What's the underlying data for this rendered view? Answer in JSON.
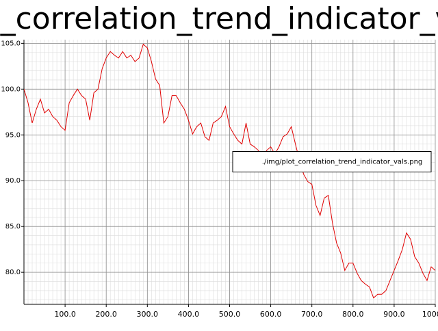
{
  "chart_data": {
    "type": "line",
    "title": "plot_correlation_trend_indicator_vals",
    "x": [
      0,
      10,
      20,
      30,
      40,
      50,
      60,
      70,
      80,
      90,
      100,
      110,
      120,
      130,
      140,
      150,
      160,
      170,
      180,
      190,
      200,
      210,
      220,
      230,
      240,
      250,
      260,
      270,
      280,
      290,
      300,
      310,
      320,
      330,
      340,
      350,
      360,
      370,
      380,
      390,
      400,
      410,
      420,
      430,
      440,
      450,
      460,
      470,
      480,
      490,
      500,
      510,
      520,
      530,
      540,
      550,
      560,
      570,
      580,
      590,
      600,
      610,
      620,
      630,
      640,
      650,
      660,
      670,
      680,
      690,
      700,
      710,
      720,
      730,
      740,
      750,
      760,
      770,
      780,
      790,
      800,
      810,
      820,
      830,
      840,
      850,
      860,
      870,
      880,
      890,
      900,
      910,
      920,
      930,
      940,
      950,
      960,
      970,
      980,
      990,
      1000
    ],
    "series": [
      {
        "name": "./img/plot_correlation_trend_indicator_vals.png",
        "color": "#e00000",
        "values": [
          100.0,
          98.5,
          96.3,
          97.8,
          98.9,
          97.4,
          97.8,
          97.0,
          96.6,
          95.9,
          95.5,
          98.5,
          99.3,
          100.0,
          99.3,
          98.9,
          96.6,
          99.6,
          100.0,
          102.2,
          103.4,
          104.1,
          103.7,
          103.4,
          104.1,
          103.4,
          103.7,
          103.0,
          103.4,
          104.9,
          104.5,
          103.0,
          101.1,
          100.4,
          96.3,
          97.0,
          99.3,
          99.3,
          98.5,
          97.8,
          96.6,
          95.1,
          95.9,
          96.3,
          94.8,
          94.4,
          96.3,
          96.6,
          97.0,
          98.1,
          95.9,
          95.1,
          94.4,
          94.0,
          96.3,
          94.0,
          93.7,
          93.3,
          92.5,
          93.3,
          93.7,
          92.9,
          93.7,
          94.8,
          95.1,
          95.9,
          94.0,
          92.2,
          90.7,
          89.9,
          89.6,
          87.3,
          86.2,
          88.1,
          88.4,
          85.4,
          83.2,
          82.1,
          80.2,
          81.0,
          81.0,
          79.9,
          79.1,
          78.7,
          78.4,
          77.2,
          77.6,
          77.6,
          78.0,
          79.1,
          80.2,
          81.3,
          82.5,
          84.3,
          83.6,
          81.7,
          81.0,
          79.9,
          79.1,
          80.6,
          80.2
        ]
      }
    ],
    "xlim": [
      0,
      1000
    ],
    "ylim": [
      76.5,
      105.4
    ],
    "xticks": [
      {
        "value": 100,
        "label": "100.0"
      },
      {
        "value": 200,
        "label": "200.0"
      },
      {
        "value": 300,
        "label": "300.0"
      },
      {
        "value": 400,
        "label": "400.0"
      },
      {
        "value": 500,
        "label": "500.0"
      },
      {
        "value": 600,
        "label": "600.0"
      },
      {
        "value": 700,
        "label": "700.0"
      },
      {
        "value": 800,
        "label": "800.0"
      },
      {
        "value": 900,
        "label": "900.0"
      },
      {
        "value": 1000,
        "label": "1000.0"
      }
    ],
    "yticks": [
      {
        "value": 80,
        "label": "80.0"
      },
      {
        "value": 85,
        "label": "85.0"
      },
      {
        "value": 90,
        "label": "90.0"
      },
      {
        "value": 95,
        "label": "95.0"
      },
      {
        "value": 100,
        "label": "100.0"
      },
      {
        "value": 105,
        "label": "105.0"
      }
    ],
    "grid": true,
    "legend_position": "right"
  }
}
